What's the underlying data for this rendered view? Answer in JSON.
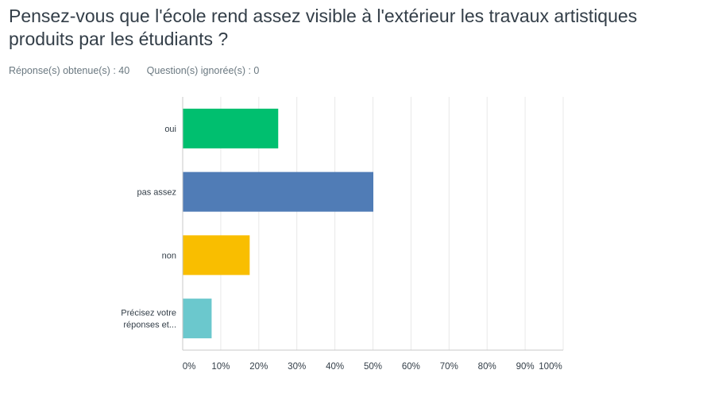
{
  "question": {
    "title": "Pensez-vous que l'école rend assez visible à l'extérieur les travaux artistiques produits par les étudiants ?",
    "answered": "Réponse(s) obtenue(s) : 40",
    "skipped": "Question(s) ignorée(s) : 0"
  },
  "chart_data": {
    "type": "bar",
    "orientation": "horizontal",
    "categories": [
      "oui",
      "pas assez",
      "non",
      "Précisez votre réponses et..."
    ],
    "category_lines": [
      [
        "oui"
      ],
      [
        "pas assez"
      ],
      [
        "non"
      ],
      [
        "Précisez votre",
        "réponses et..."
      ]
    ],
    "values": [
      25,
      50,
      17.5,
      7.5
    ],
    "colors": [
      "#00bf6f",
      "#507cb6",
      "#f9be00",
      "#6bc8cd"
    ],
    "xlim": [
      0,
      100
    ],
    "xticks": [
      "0%",
      "10%",
      "20%",
      "30%",
      "40%",
      "50%",
      "60%",
      "70%",
      "80%",
      "90%",
      "100%"
    ],
    "grid": true,
    "title": "",
    "xlabel": "",
    "ylabel": ""
  }
}
